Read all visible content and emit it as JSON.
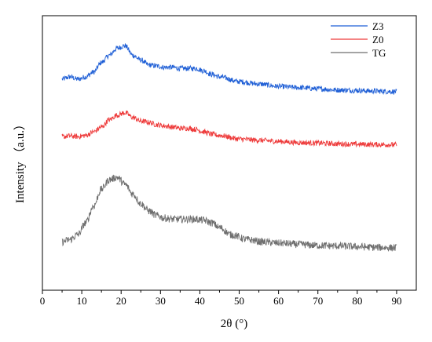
{
  "chart_data": {
    "type": "line",
    "xlabel": "2θ (°)",
    "ylabel": "Intensity （a.u.）",
    "xlim": [
      0,
      95
    ],
    "xticks": [
      0,
      10,
      20,
      30,
      40,
      50,
      60,
      70,
      80,
      90
    ],
    "tick_labels": [
      "0",
      "10",
      "20",
      "30",
      "40",
      "50",
      "60",
      "70",
      "80",
      "90"
    ],
    "yticks_shown": false,
    "grid": false,
    "legend_position": "top-right",
    "series": [
      {
        "name": "Z3",
        "color": "#1f5fd6",
        "points": [
          [
            5,
            0.8
          ],
          [
            7,
            0.81
          ],
          [
            9,
            0.8
          ],
          [
            11,
            0.81
          ],
          [
            13,
            0.83
          ],
          [
            15,
            0.87
          ],
          [
            17,
            0.9
          ],
          [
            19,
            0.93
          ],
          [
            21,
            0.94
          ],
          [
            23,
            0.9
          ],
          [
            25,
            0.88
          ],
          [
            27,
            0.86
          ],
          [
            29,
            0.855
          ],
          [
            31,
            0.85
          ],
          [
            33,
            0.85
          ],
          [
            35,
            0.845
          ],
          [
            37,
            0.845
          ],
          [
            39,
            0.845
          ],
          [
            41,
            0.835
          ],
          [
            43,
            0.82
          ],
          [
            45,
            0.81
          ],
          [
            50,
            0.79
          ],
          [
            55,
            0.78
          ],
          [
            60,
            0.77
          ],
          [
            65,
            0.765
          ],
          [
            70,
            0.76
          ],
          [
            75,
            0.755
          ],
          [
            80,
            0.753
          ],
          [
            85,
            0.75
          ],
          [
            90,
            0.748
          ]
        ]
      },
      {
        "name": "Z0",
        "color": "#ee3b3b",
        "points": [
          [
            5,
            0.56
          ],
          [
            7,
            0.563
          ],
          [
            9,
            0.56
          ],
          [
            11,
            0.565
          ],
          [
            13,
            0.58
          ],
          [
            15,
            0.6
          ],
          [
            17,
            0.63
          ],
          [
            19,
            0.65
          ],
          [
            21,
            0.66
          ],
          [
            23,
            0.64
          ],
          [
            25,
            0.625
          ],
          [
            27,
            0.62
          ],
          [
            29,
            0.61
          ],
          [
            31,
            0.605
          ],
          [
            33,
            0.6
          ],
          [
            35,
            0.595
          ],
          [
            37,
            0.595
          ],
          [
            39,
            0.59
          ],
          [
            41,
            0.58
          ],
          [
            43,
            0.57
          ],
          [
            45,
            0.565
          ],
          [
            50,
            0.55
          ],
          [
            55,
            0.545
          ],
          [
            60,
            0.54
          ],
          [
            65,
            0.535
          ],
          [
            70,
            0.533
          ],
          [
            75,
            0.53
          ],
          [
            80,
            0.528
          ],
          [
            85,
            0.527
          ],
          [
            90,
            0.526
          ]
        ]
      },
      {
        "name": "TG",
        "color": "#6e6e6e",
        "points": [
          [
            5,
            0.12
          ],
          [
            7,
            0.13
          ],
          [
            9,
            0.15
          ],
          [
            11,
            0.2
          ],
          [
            13,
            0.27
          ],
          [
            15,
            0.34
          ],
          [
            17,
            0.38
          ],
          [
            19,
            0.39
          ],
          [
            21,
            0.36
          ],
          [
            23,
            0.32
          ],
          [
            25,
            0.28
          ],
          [
            27,
            0.25
          ],
          [
            29,
            0.23
          ],
          [
            31,
            0.22
          ],
          [
            33,
            0.215
          ],
          [
            35,
            0.215
          ],
          [
            37,
            0.215
          ],
          [
            39,
            0.215
          ],
          [
            41,
            0.21
          ],
          [
            43,
            0.2
          ],
          [
            45,
            0.18
          ],
          [
            48,
            0.15
          ],
          [
            52,
            0.13
          ],
          [
            56,
            0.12
          ],
          [
            60,
            0.115
          ],
          [
            65,
            0.11
          ],
          [
            70,
            0.105
          ],
          [
            75,
            0.103
          ],
          [
            80,
            0.1
          ],
          [
            85,
            0.097
          ],
          [
            90,
            0.095
          ]
        ]
      }
    ]
  }
}
